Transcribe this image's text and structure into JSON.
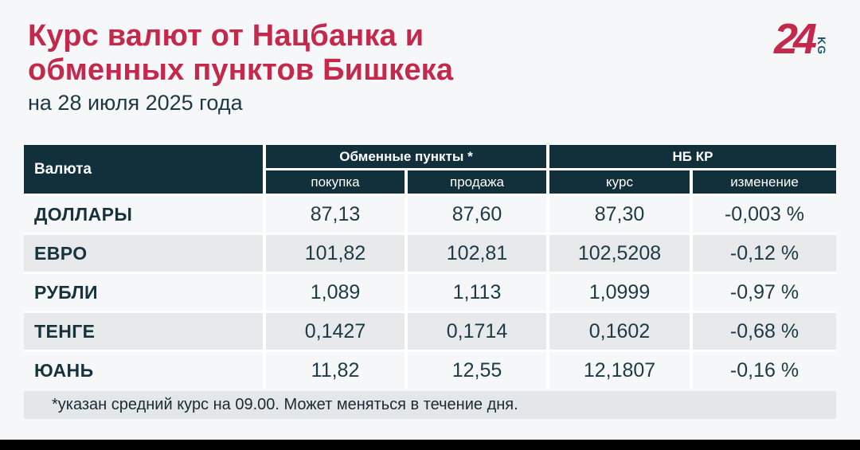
{
  "page": {
    "title_line1": "Курс валют от Нацбанка и",
    "title_line2": "обменных пунктов Бишкека",
    "subtitle": "на 28 июля 2025 года",
    "logo": {
      "number": "24",
      "suffix": "KG"
    },
    "colors": {
      "brand_red": "#c4284b",
      "header_dark": "#11303b",
      "row_light": "#f6f7f9",
      "row_grey": "#e7e9eb",
      "logo_kg_teal": "#1d5971"
    }
  },
  "table": {
    "col_currency": "Валюта",
    "group_exchange": "Обменные пункты *",
    "group_nbkr": "НБ КР",
    "sub_buy": "покупка",
    "sub_sell": "продажа",
    "sub_rate": "курс",
    "sub_change": "изменение",
    "rows": [
      {
        "currency": "ДОЛЛАРЫ",
        "buy": "87,13",
        "sell": "87,60",
        "rate": "87,30",
        "change": "-0,003 %"
      },
      {
        "currency": "ЕВРО",
        "buy": "101,82",
        "sell": "102,81",
        "rate": "102,5208",
        "change": "-0,12 %"
      },
      {
        "currency": "РУБЛИ",
        "buy": "1,089",
        "sell": "1,113",
        "rate": "1,0999",
        "change": "-0,97 %"
      },
      {
        "currency": "ТЕНГЕ",
        "buy": "0,1427",
        "sell": "0,1714",
        "rate": "0,1602",
        "change": "-0,68 %"
      },
      {
        "currency": "ЮАНЬ",
        "buy": "11,82",
        "sell": "12,55",
        "rate": "12,1807",
        "change": "-0,16 %"
      }
    ],
    "footnote": "*указан средний курс на 09.00. Может меняться в течение дня."
  },
  "chart_data": {
    "type": "table",
    "title": "Курс валют от Нацбанка и обменных пунктов Бишкека",
    "subtitle": "на 28 июля 2025 года",
    "column_groups": [
      "Валюта",
      "Обменные пункты *",
      "НБ КР"
    ],
    "columns": [
      "Валюта",
      "покупка",
      "продажа",
      "курс",
      "изменение"
    ],
    "rows": [
      [
        "ДОЛЛАРЫ",
        "87,13",
        "87,60",
        "87,30",
        "-0,003 %"
      ],
      [
        "ЕВРО",
        "101,82",
        "102,81",
        "102,5208",
        "-0,12 %"
      ],
      [
        "РУБЛИ",
        "1,089",
        "1,113",
        "1,0999",
        "-0,97 %"
      ],
      [
        "ТЕНГЕ",
        "0,1427",
        "0,1714",
        "0,1602",
        "-0,68 %"
      ],
      [
        "ЮАНЬ",
        "11,82",
        "12,55",
        "12,1807",
        "-0,16 %"
      ]
    ],
    "footnote": "*указан средний курс на 09.00. Может меняться в течение дня."
  }
}
